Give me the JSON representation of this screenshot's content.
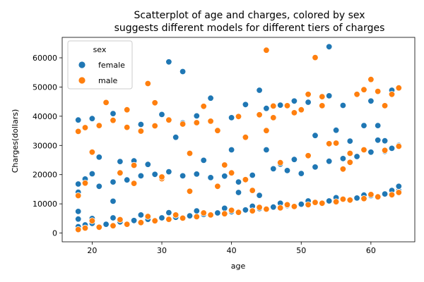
{
  "chart_data": {
    "type": "scatter",
    "title_lines": [
      "Scatterplot of age and charges, colored by sex",
      "suggests different models for different tiers of charges"
    ],
    "xlabel": "age",
    "ylabel": "Charges(dollars)",
    "xlim": [
      15.7,
      66.3
    ],
    "ylim": [
      -3000,
      67000
    ],
    "xticks": [
      20,
      30,
      40,
      50,
      60
    ],
    "yticks": [
      0,
      10000,
      20000,
      30000,
      40000,
      50000,
      60000
    ],
    "grid": false,
    "legend": {
      "title": "sex",
      "placement": "top-left"
    },
    "series": [
      {
        "name": "female",
        "color": "#1f77b4",
        "points": [
          [
            18,
            2200
          ],
          [
            19,
            2800
          ],
          [
            20,
            3300
          ],
          [
            22,
            3000
          ],
          [
            24,
            3800
          ],
          [
            26,
            4300
          ],
          [
            28,
            4700
          ],
          [
            30,
            5200
          ],
          [
            32,
            5400
          ],
          [
            34,
            5900
          ],
          [
            36,
            6400
          ],
          [
            38,
            6900
          ],
          [
            40,
            7300
          ],
          [
            42,
            7900
          ],
          [
            44,
            8400
          ],
          [
            46,
            8900
          ],
          [
            48,
            9400
          ],
          [
            50,
            9900
          ],
          [
            52,
            10400
          ],
          [
            54,
            11000
          ],
          [
            56,
            11500
          ],
          [
            58,
            12000
          ],
          [
            60,
            12800
          ],
          [
            62,
            13400
          ],
          [
            64,
            14500
          ],
          [
            18,
            4800
          ],
          [
            20,
            5000
          ],
          [
            23,
            5200
          ],
          [
            27,
            6200
          ],
          [
            31,
            7000
          ],
          [
            35,
            7600
          ],
          [
            39,
            8500
          ],
          [
            43,
            9200
          ],
          [
            47,
            10200
          ],
          [
            51,
            11000
          ],
          [
            55,
            12100
          ],
          [
            59,
            13000
          ],
          [
            63,
            14600
          ],
          [
            64,
            16000
          ],
          [
            18,
            7400
          ],
          [
            18,
            14000
          ],
          [
            18,
            16800
          ],
          [
            19,
            18500
          ],
          [
            20,
            20300
          ],
          [
            21,
            16000
          ],
          [
            23,
            17500
          ],
          [
            25,
            18200
          ],
          [
            27,
            19600
          ],
          [
            29,
            20100
          ],
          [
            31,
            21000
          ],
          [
            33,
            19600
          ],
          [
            35,
            20200
          ],
          [
            37,
            19000
          ],
          [
            39,
            19500
          ],
          [
            41,
            17500
          ],
          [
            43,
            19800
          ],
          [
            44,
            12900
          ],
          [
            46,
            22000
          ],
          [
            47,
            23600
          ],
          [
            49,
            25200
          ],
          [
            52,
            22600
          ],
          [
            54,
            24600
          ],
          [
            56,
            25500
          ],
          [
            58,
            26200
          ],
          [
            60,
            27700
          ],
          [
            62,
            28000
          ],
          [
            63,
            29000
          ],
          [
            64,
            30000
          ],
          [
            23,
            10900
          ],
          [
            21,
            26000
          ],
          [
            24,
            24500
          ],
          [
            26,
            24700
          ],
          [
            28,
            23500
          ],
          [
            32,
            32800
          ],
          [
            36,
            24900
          ],
          [
            40,
            28500
          ],
          [
            45,
            28500
          ],
          [
            52,
            33400
          ],
          [
            57,
            31500
          ],
          [
            59,
            36800
          ],
          [
            61,
            36800
          ],
          [
            18,
            38700
          ],
          [
            20,
            39200
          ],
          [
            23,
            40900
          ],
          [
            27,
            37200
          ],
          [
            30,
            40600
          ],
          [
            33,
            37700
          ],
          [
            35,
            40100
          ],
          [
            37,
            46200
          ],
          [
            40,
            39500
          ],
          [
            42,
            44000
          ],
          [
            44,
            48900
          ],
          [
            45,
            42700
          ],
          [
            47,
            43800
          ],
          [
            49,
            45200
          ],
          [
            51,
            44800
          ],
          [
            54,
            47000
          ],
          [
            56,
            43700
          ],
          [
            60,
            45200
          ],
          [
            63,
            48900
          ],
          [
            31,
            58600
          ],
          [
            33,
            55300
          ],
          [
            54,
            63800
          ],
          [
            55,
            35200
          ],
          [
            61,
            31800
          ],
          [
            62,
            31600
          ],
          [
            50,
            20400
          ],
          [
            48,
            21400
          ],
          [
            41,
            13900
          ]
        ]
      },
      {
        "name": "male",
        "color": "#ff7f0e",
        "points": [
          [
            18,
            1200
          ],
          [
            19,
            1700
          ],
          [
            21,
            2000
          ],
          [
            23,
            2500
          ],
          [
            25,
            3000
          ],
          [
            27,
            3600
          ],
          [
            29,
            4200
          ],
          [
            31,
            4700
          ],
          [
            33,
            5100
          ],
          [
            35,
            5600
          ],
          [
            37,
            6200
          ],
          [
            39,
            6600
          ],
          [
            41,
            7100
          ],
          [
            43,
            7600
          ],
          [
            45,
            8200
          ],
          [
            47,
            8600
          ],
          [
            49,
            9100
          ],
          [
            51,
            9700
          ],
          [
            53,
            10200
          ],
          [
            55,
            10700
          ],
          [
            57,
            11300
          ],
          [
            59,
            11800
          ],
          [
            61,
            12400
          ],
          [
            63,
            13100
          ],
          [
            64,
            13900
          ],
          [
            20,
            4200
          ],
          [
            24,
            4600
          ],
          [
            28,
            5700
          ],
          [
            32,
            6200
          ],
          [
            36,
            6900
          ],
          [
            40,
            7800
          ],
          [
            44,
            8800
          ],
          [
            48,
            9700
          ],
          [
            52,
            10500
          ],
          [
            56,
            11600
          ],
          [
            60,
            13200
          ],
          [
            18,
            12800
          ],
          [
            19,
            17100
          ],
          [
            20,
            27700
          ],
          [
            22,
            44700
          ],
          [
            24,
            20600
          ],
          [
            25,
            42200
          ],
          [
            26,
            17000
          ],
          [
            28,
            51200
          ],
          [
            29,
            44600
          ],
          [
            30,
            18600
          ],
          [
            31,
            38700
          ],
          [
            34,
            27300
          ],
          [
            34,
            14300
          ],
          [
            36,
            43400
          ],
          [
            38,
            35100
          ],
          [
            39,
            23300
          ],
          [
            40,
            20600
          ],
          [
            42,
            32800
          ],
          [
            43,
            14600
          ],
          [
            45,
            62600
          ],
          [
            45,
            35100
          ],
          [
            46,
            39500
          ],
          [
            48,
            43600
          ],
          [
            50,
            42200
          ],
          [
            51,
            47500
          ],
          [
            52,
            60100
          ],
          [
            53,
            46700
          ],
          [
            55,
            30800
          ],
          [
            56,
            21900
          ],
          [
            57,
            27300
          ],
          [
            58,
            47500
          ],
          [
            59,
            49100
          ],
          [
            60,
            52600
          ],
          [
            61,
            48500
          ],
          [
            62,
            43600
          ],
          [
            63,
            47500
          ],
          [
            64,
            49700
          ],
          [
            18,
            34800
          ],
          [
            19,
            36100
          ],
          [
            21,
            36800
          ],
          [
            23,
            38600
          ],
          [
            25,
            36200
          ],
          [
            27,
            34900
          ],
          [
            29,
            36700
          ],
          [
            33,
            37300
          ],
          [
            35,
            37800
          ],
          [
            37,
            38300
          ],
          [
            41,
            39900
          ],
          [
            44,
            40500
          ],
          [
            46,
            43500
          ],
          [
            49,
            41200
          ],
          [
            53,
            43600
          ],
          [
            57,
            24200
          ],
          [
            59,
            28500
          ],
          [
            62,
            28300
          ],
          [
            64,
            29700
          ],
          [
            26,
            23200
          ],
          [
            30,
            19200
          ],
          [
            38,
            16000
          ],
          [
            42,
            18300
          ],
          [
            47,
            24100
          ],
          [
            51,
            26500
          ],
          [
            54,
            30600
          ]
        ]
      }
    ]
  }
}
